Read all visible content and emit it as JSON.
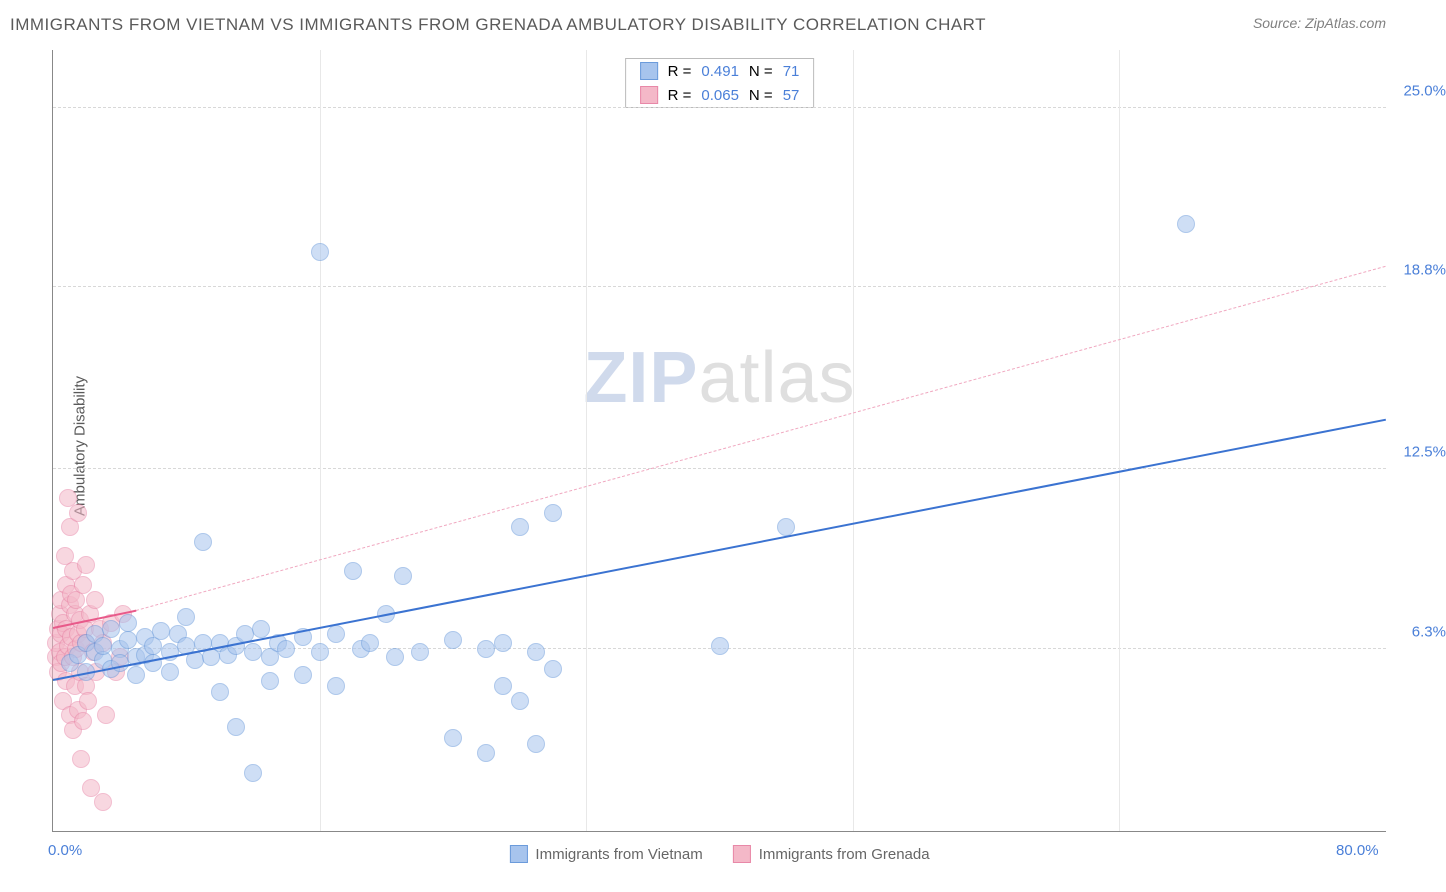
{
  "title": "IMMIGRANTS FROM VIETNAM VS IMMIGRANTS FROM GRENADA AMBULATORY DISABILITY CORRELATION CHART",
  "source": "Source: ZipAtlas.com",
  "ylabel": "Ambulatory Disability",
  "watermark_a": "ZIP",
  "watermark_b": "atlas",
  "chart": {
    "type": "scatter",
    "xlim": [
      0,
      80
    ],
    "ylim": [
      0,
      27
    ],
    "x_ticks": [
      {
        "v": 0,
        "label": "0.0%"
      },
      {
        "v": 80,
        "label": "80.0%"
      }
    ],
    "x_grid": [
      16,
      32,
      48,
      64
    ],
    "y_ticks": [
      {
        "v": 6.3,
        "label": "6.3%"
      },
      {
        "v": 12.5,
        "label": "12.5%"
      },
      {
        "v": 18.8,
        "label": "18.8%"
      },
      {
        "v": 25.0,
        "label": "25.0%"
      }
    ],
    "background_color": "#ffffff",
    "grid_color": "#d8d8d8",
    "marker_radius": 9,
    "marker_opacity": 0.55
  },
  "series": {
    "vietnam": {
      "label": "Immigrants from Vietnam",
      "color_fill": "#a7c4ed",
      "color_stroke": "#6b9bdb",
      "R": "0.491",
      "N": "71",
      "trend": {
        "x1": 0,
        "y1": 5.2,
        "x2": 80,
        "y2": 14.2,
        "dash": false,
        "width": 2.5,
        "color": "#3b73d1"
      },
      "points": [
        [
          1,
          5.8
        ],
        [
          1.5,
          6.1
        ],
        [
          2,
          6.5
        ],
        [
          2,
          5.5
        ],
        [
          2.5,
          6.8
        ],
        [
          2.5,
          6.2
        ],
        [
          3,
          5.9
        ],
        [
          3,
          6.4
        ],
        [
          3.5,
          7.0
        ],
        [
          3.5,
          5.6
        ],
        [
          4,
          6.3
        ],
        [
          4,
          5.8
        ],
        [
          4.5,
          6.6
        ],
        [
          4.5,
          7.2
        ],
        [
          5,
          6.0
        ],
        [
          5,
          5.4
        ],
        [
          5.5,
          6.7
        ],
        [
          5.5,
          6.1
        ],
        [
          6,
          6.4
        ],
        [
          6,
          5.8
        ],
        [
          6.5,
          6.9
        ],
        [
          7,
          6.2
        ],
        [
          7,
          5.5
        ],
        [
          7.5,
          6.8
        ],
        [
          8,
          7.4
        ],
        [
          8,
          6.4
        ],
        [
          8.5,
          5.9
        ],
        [
          9,
          6.5
        ],
        [
          9,
          10.0
        ],
        [
          9.5,
          6.0
        ],
        [
          10,
          6.5
        ],
        [
          10,
          4.8
        ],
        [
          10.5,
          6.1
        ],
        [
          11,
          6.4
        ],
        [
          11,
          3.6
        ],
        [
          11.5,
          6.8
        ],
        [
          12,
          6.2
        ],
        [
          12,
          2.0
        ],
        [
          12.5,
          7.0
        ],
        [
          13,
          6.0
        ],
        [
          13,
          5.2
        ],
        [
          13.5,
          6.5
        ],
        [
          14,
          6.3
        ],
        [
          15,
          5.4
        ],
        [
          15,
          6.7
        ],
        [
          16,
          6.2
        ],
        [
          16,
          20.0
        ],
        [
          17,
          6.8
        ],
        [
          17,
          5.0
        ],
        [
          18,
          9.0
        ],
        [
          18.5,
          6.3
        ],
        [
          19,
          6.5
        ],
        [
          20,
          7.5
        ],
        [
          20.5,
          6.0
        ],
        [
          21,
          8.8
        ],
        [
          22,
          6.2
        ],
        [
          24,
          6.6
        ],
        [
          24,
          3.2
        ],
        [
          26,
          6.3
        ],
        [
          26,
          2.7
        ],
        [
          27,
          6.5
        ],
        [
          27,
          5.0
        ],
        [
          28,
          10.5
        ],
        [
          28,
          4.5
        ],
        [
          29,
          6.2
        ],
        [
          29,
          3.0
        ],
        [
          30,
          11.0
        ],
        [
          30,
          5.6
        ],
        [
          40,
          6.4
        ],
        [
          44,
          10.5
        ],
        [
          68,
          21.0
        ]
      ]
    },
    "grenada": {
      "label": "Immigrants from Grenada",
      "color_fill": "#f4b8c8",
      "color_stroke": "#e888a8",
      "R": "0.065",
      "N": "57",
      "trend_solid": {
        "x1": 0,
        "y1": 7.0,
        "x2": 5,
        "y2": 7.6,
        "dash": false,
        "width": 2.5,
        "color": "#e85a8a"
      },
      "trend_dashed": {
        "x1": 5,
        "y1": 7.6,
        "x2": 80,
        "y2": 19.5,
        "dash": true,
        "width": 1.2,
        "color": "#f0a8c0"
      },
      "points": [
        [
          0.2,
          6.0
        ],
        [
          0.2,
          6.5
        ],
        [
          0.3,
          7.0
        ],
        [
          0.3,
          5.5
        ],
        [
          0.4,
          7.5
        ],
        [
          0.4,
          6.2
        ],
        [
          0.5,
          8.0
        ],
        [
          0.5,
          5.8
        ],
        [
          0.5,
          6.8
        ],
        [
          0.6,
          4.5
        ],
        [
          0.6,
          7.2
        ],
        [
          0.7,
          9.5
        ],
        [
          0.7,
          6.0
        ],
        [
          0.8,
          8.5
        ],
        [
          0.8,
          5.2
        ],
        [
          0.8,
          7.0
        ],
        [
          0.9,
          11.5
        ],
        [
          0.9,
          6.4
        ],
        [
          1.0,
          10.5
        ],
        [
          1.0,
          4.0
        ],
        [
          1.0,
          7.8
        ],
        [
          1.1,
          6.7
        ],
        [
          1.1,
          8.2
        ],
        [
          1.2,
          3.5
        ],
        [
          1.2,
          6.0
        ],
        [
          1.2,
          9.0
        ],
        [
          1.3,
          7.5
        ],
        [
          1.3,
          5.0
        ],
        [
          1.4,
          6.3
        ],
        [
          1.4,
          8.0
        ],
        [
          1.5,
          11.0
        ],
        [
          1.5,
          4.2
        ],
        [
          1.5,
          6.8
        ],
        [
          1.6,
          7.3
        ],
        [
          1.6,
          5.5
        ],
        [
          1.7,
          2.5
        ],
        [
          1.7,
          6.5
        ],
        [
          1.8,
          8.5
        ],
        [
          1.8,
          3.8
        ],
        [
          1.9,
          7.0
        ],
        [
          2.0,
          9.2
        ],
        [
          2.0,
          5.0
        ],
        [
          2.0,
          6.5
        ],
        [
          2.1,
          4.5
        ],
        [
          2.2,
          7.5
        ],
        [
          2.3,
          1.5
        ],
        [
          2.4,
          6.2
        ],
        [
          2.5,
          8.0
        ],
        [
          2.6,
          5.5
        ],
        [
          2.8,
          7.0
        ],
        [
          3.0,
          1.0
        ],
        [
          3.0,
          6.5
        ],
        [
          3.2,
          4.0
        ],
        [
          3.5,
          7.2
        ],
        [
          3.8,
          5.5
        ],
        [
          4.0,
          6.0
        ],
        [
          4.2,
          7.5
        ]
      ]
    }
  },
  "legend_top": {
    "r_label": "R  =",
    "n_label": "N  =",
    "text_color": "#555",
    "value_color": "#4a7fd8"
  }
}
